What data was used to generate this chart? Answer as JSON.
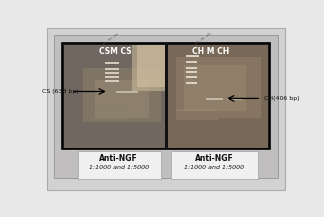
{
  "fig_width": 3.24,
  "fig_height": 2.17,
  "dpi": 100,
  "bg_color": "#c8c8c8",
  "white_bg": "#e8e8e8",
  "gel_frame_color": "#111111",
  "gel_bg_left": "#787068",
  "gel_bg_right": "#807870",
  "label_cs": "CS (638 bp)",
  "label_ch": "CH(406 bp)",
  "label_csm_cs": "CSM CS",
  "label_ch_m_ch": "CH M CH",
  "left_box_label": "Anti-NGF",
  "left_box_sub": "1:1000 and 1:5000",
  "right_box_label": "Anti-NGF",
  "right_box_sub": "1:1000 and 1:5000",
  "box_bg": "#f0f0f0",
  "text_color": "#111111",
  "band_white": "#e0e0e0",
  "band_bright": "#d8d8d8",
  "gel_light_left": "#a09888",
  "gel_light_right": "#a89890"
}
